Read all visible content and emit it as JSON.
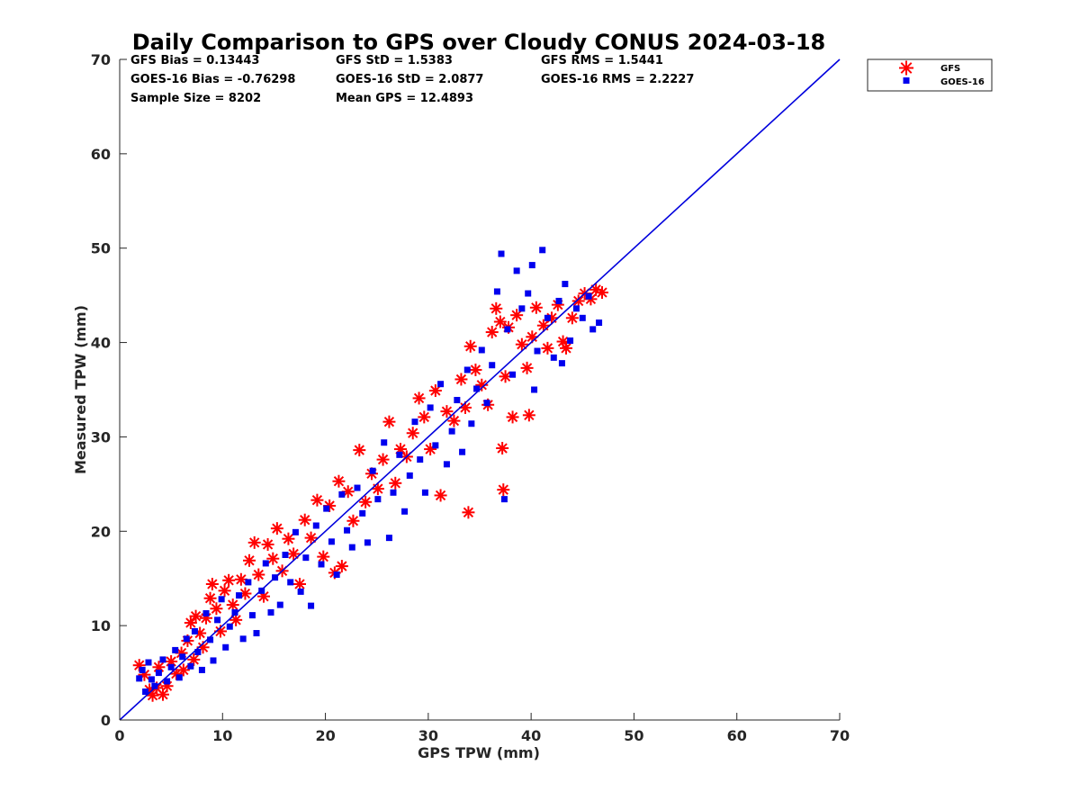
{
  "chart_data": {
    "type": "scatter",
    "title": "Daily Comparison to GPS over Cloudy CONUS 2024-03-18",
    "xlabel": "GPS TPW (mm)",
    "ylabel": "Measured TPW (mm)",
    "xlim": [
      0,
      70
    ],
    "ylim": [
      0,
      70
    ],
    "xticks": [
      "0",
      "10",
      "20",
      "30",
      "40",
      "50",
      "60",
      "70"
    ],
    "yticks": [
      "0",
      "10",
      "20",
      "30",
      "40",
      "50",
      "60",
      "70"
    ],
    "grid": false,
    "legend_position": "outside-top-right",
    "stats": [
      [
        "GFS Bias = 0.13443",
        "GFS StD = 1.5383",
        "GFS RMS = 1.5441"
      ],
      [
        "GOES-16 Bias = -0.76298",
        "GOES-16 StD = 2.0877",
        "GOES-16 RMS = 2.2227"
      ],
      [
        "Sample Size = 8202",
        "Mean GPS = 12.4893",
        ""
      ]
    ],
    "reference_line": {
      "x": [
        0,
        70
      ],
      "y": [
        0,
        70
      ],
      "color": "#0000dd"
    },
    "series": [
      {
        "name": "GFS",
        "marker": "asterisk",
        "color": "#ff0000",
        "points": [
          [
            1.9,
            5.8
          ],
          [
            2.4,
            4.8
          ],
          [
            2.9,
            3.2
          ],
          [
            3.2,
            2.6
          ],
          [
            3.6,
            3.4
          ],
          [
            3.8,
            5.6
          ],
          [
            4.2,
            2.7
          ],
          [
            4.6,
            3.6
          ],
          [
            5.0,
            6.2
          ],
          [
            5.5,
            4.9
          ],
          [
            6.0,
            7.1
          ],
          [
            6.2,
            5.3
          ],
          [
            6.6,
            8.4
          ],
          [
            6.9,
            10.3
          ],
          [
            7.2,
            6.4
          ],
          [
            7.4,
            11.0
          ],
          [
            7.8,
            9.2
          ],
          [
            8.1,
            7.7
          ],
          [
            8.4,
            10.8
          ],
          [
            8.8,
            12.9
          ],
          [
            9.0,
            14.4
          ],
          [
            9.4,
            11.8
          ],
          [
            9.8,
            9.4
          ],
          [
            10.2,
            13.7
          ],
          [
            10.6,
            14.8
          ],
          [
            11.0,
            12.2
          ],
          [
            11.3,
            10.6
          ],
          [
            11.8,
            14.9
          ],
          [
            12.2,
            13.4
          ],
          [
            12.6,
            16.9
          ],
          [
            13.1,
            18.8
          ],
          [
            13.5,
            15.4
          ],
          [
            14.0,
            13.1
          ],
          [
            14.4,
            18.6
          ],
          [
            14.9,
            17.1
          ],
          [
            15.3,
            20.3
          ],
          [
            15.8,
            15.8
          ],
          [
            16.4,
            19.2
          ],
          [
            16.9,
            17.6
          ],
          [
            17.5,
            14.4
          ],
          [
            18.0,
            21.2
          ],
          [
            18.6,
            19.3
          ],
          [
            19.2,
            23.3
          ],
          [
            19.8,
            17.3
          ],
          [
            20.4,
            22.7
          ],
          [
            20.9,
            15.6
          ],
          [
            21.3,
            25.3
          ],
          [
            21.6,
            16.3
          ],
          [
            22.2,
            24.2
          ],
          [
            22.7,
            21.1
          ],
          [
            23.3,
            28.6
          ],
          [
            23.9,
            23.1
          ],
          [
            24.5,
            26.1
          ],
          [
            25.1,
            24.5
          ],
          [
            25.6,
            27.6
          ],
          [
            26.2,
            31.6
          ],
          [
            26.8,
            25.1
          ],
          [
            27.3,
            28.7
          ],
          [
            27.9,
            27.9
          ],
          [
            28.5,
            30.4
          ],
          [
            29.1,
            34.1
          ],
          [
            29.6,
            32.1
          ],
          [
            30.2,
            28.7
          ],
          [
            30.7,
            34.9
          ],
          [
            31.2,
            23.8
          ],
          [
            31.8,
            32.7
          ],
          [
            32.5,
            31.7
          ],
          [
            33.2,
            36.1
          ],
          [
            33.6,
            33.1
          ],
          [
            33.9,
            22.0
          ],
          [
            34.1,
            39.6
          ],
          [
            34.6,
            37.1
          ],
          [
            35.2,
            35.5
          ],
          [
            35.8,
            33.4
          ],
          [
            36.2,
            41.1
          ],
          [
            36.6,
            43.6
          ],
          [
            37.0,
            42.2
          ],
          [
            37.2,
            28.8
          ],
          [
            37.3,
            24.4
          ],
          [
            37.5,
            36.4
          ],
          [
            37.8,
            41.6
          ],
          [
            38.2,
            32.1
          ],
          [
            38.6,
            42.9
          ],
          [
            39.1,
            39.8
          ],
          [
            39.6,
            37.3
          ],
          [
            39.8,
            32.3
          ],
          [
            40.1,
            40.6
          ],
          [
            40.5,
            43.7
          ],
          [
            41.2,
            41.8
          ],
          [
            41.6,
            39.4
          ],
          [
            42.0,
            42.6
          ],
          [
            42.6,
            44.0
          ],
          [
            43.1,
            40.1
          ],
          [
            43.4,
            39.4
          ],
          [
            44.0,
            42.6
          ],
          [
            44.6,
            44.4
          ],
          [
            45.2,
            45.2
          ],
          [
            45.8,
            44.6
          ],
          [
            46.3,
            45.6
          ],
          [
            46.9,
            45.3
          ]
        ]
      },
      {
        "name": "GOES-16",
        "marker": "square",
        "color": "#0000ee",
        "points": [
          [
            1.9,
            4.4
          ],
          [
            2.2,
            5.3
          ],
          [
            2.5,
            3.0
          ],
          [
            2.8,
            6.1
          ],
          [
            3.1,
            4.3
          ],
          [
            3.4,
            3.6
          ],
          [
            3.8,
            5.0
          ],
          [
            4.2,
            6.4
          ],
          [
            4.6,
            4.1
          ],
          [
            5.0,
            5.6
          ],
          [
            5.4,
            7.4
          ],
          [
            5.8,
            4.5
          ],
          [
            6.1,
            6.7
          ],
          [
            6.5,
            8.6
          ],
          [
            6.9,
            5.7
          ],
          [
            7.3,
            9.4
          ],
          [
            7.6,
            7.2
          ],
          [
            8.0,
            5.3
          ],
          [
            8.4,
            11.3
          ],
          [
            8.8,
            8.5
          ],
          [
            9.1,
            6.3
          ],
          [
            9.5,
            10.6
          ],
          [
            9.9,
            12.8
          ],
          [
            10.3,
            7.7
          ],
          [
            10.7,
            9.9
          ],
          [
            11.2,
            11.4
          ],
          [
            11.6,
            13.2
          ],
          [
            12.0,
            8.6
          ],
          [
            12.5,
            14.6
          ],
          [
            12.9,
            11.1
          ],
          [
            13.3,
            9.2
          ],
          [
            13.8,
            13.7
          ],
          [
            14.2,
            16.6
          ],
          [
            14.7,
            11.4
          ],
          [
            15.1,
            15.1
          ],
          [
            15.6,
            12.2
          ],
          [
            16.1,
            17.5
          ],
          [
            16.6,
            14.6
          ],
          [
            17.1,
            19.9
          ],
          [
            17.6,
            13.6
          ],
          [
            18.1,
            17.2
          ],
          [
            18.6,
            12.1
          ],
          [
            19.1,
            20.6
          ],
          [
            19.6,
            16.5
          ],
          [
            20.1,
            22.4
          ],
          [
            20.6,
            18.9
          ],
          [
            21.1,
            15.4
          ],
          [
            21.6,
            23.9
          ],
          [
            22.1,
            20.1
          ],
          [
            22.6,
            18.3
          ],
          [
            23.1,
            24.6
          ],
          [
            23.6,
            21.9
          ],
          [
            24.1,
            18.8
          ],
          [
            24.6,
            26.4
          ],
          [
            25.1,
            23.4
          ],
          [
            25.7,
            29.4
          ],
          [
            26.2,
            19.3
          ],
          [
            26.6,
            24.1
          ],
          [
            27.2,
            28.1
          ],
          [
            27.7,
            22.1
          ],
          [
            28.2,
            25.9
          ],
          [
            28.7,
            31.6
          ],
          [
            29.2,
            27.6
          ],
          [
            29.7,
            24.1
          ],
          [
            30.2,
            33.1
          ],
          [
            30.7,
            29.1
          ],
          [
            31.2,
            35.6
          ],
          [
            31.8,
            27.1
          ],
          [
            32.3,
            30.6
          ],
          [
            32.8,
            33.9
          ],
          [
            33.3,
            28.4
          ],
          [
            33.8,
            37.1
          ],
          [
            34.2,
            31.4
          ],
          [
            34.7,
            35.1
          ],
          [
            35.2,
            39.2
          ],
          [
            35.7,
            33.6
          ],
          [
            36.2,
            37.6
          ],
          [
            36.7,
            45.4
          ],
          [
            37.1,
            49.4
          ],
          [
            37.4,
            23.4
          ],
          [
            37.7,
            41.4
          ],
          [
            38.2,
            36.6
          ],
          [
            38.6,
            47.6
          ],
          [
            39.1,
            43.6
          ],
          [
            39.7,
            45.2
          ],
          [
            40.1,
            48.2
          ],
          [
            40.6,
            39.1
          ],
          [
            41.1,
            49.8
          ],
          [
            41.6,
            42.6
          ],
          [
            42.2,
            38.4
          ],
          [
            42.7,
            44.4
          ],
          [
            43.3,
            46.2
          ],
          [
            43.8,
            40.2
          ],
          [
            44.4,
            43.6
          ],
          [
            45.0,
            42.6
          ],
          [
            45.6,
            44.9
          ],
          [
            46.0,
            41.4
          ],
          [
            46.6,
            42.1
          ],
          [
            43.0,
            37.8
          ],
          [
            40.3,
            35.0
          ]
        ]
      }
    ]
  }
}
